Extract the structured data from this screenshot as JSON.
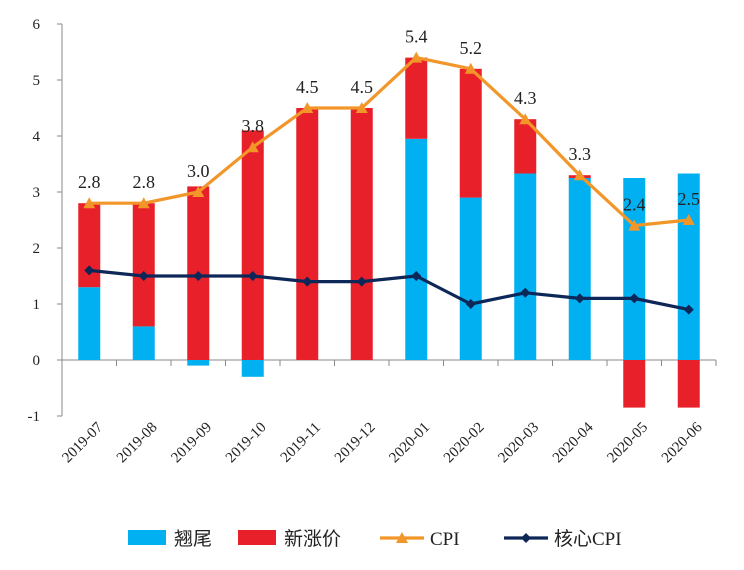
{
  "chart_data": {
    "type": "bar",
    "title": "",
    "xlabel": "",
    "ylabel": "",
    "ylim": [
      -1,
      6
    ],
    "yticks": [
      "-1",
      "0",
      "1",
      "2",
      "3",
      "4",
      "5",
      "6"
    ],
    "categories": [
      "2019-07",
      "2019-08",
      "2019-09",
      "2019-10",
      "2019-11",
      "2019-12",
      "2020-01",
      "2020-02",
      "2020-03",
      "2020-04",
      "2020-05",
      "2020-06"
    ],
    "series": [
      {
        "name": "翘尾",
        "kind": "bar",
        "color": "#00b0f0",
        "values": [
          1.3,
          0.6,
          -0.1,
          -0.3,
          0.0,
          0.0,
          3.95,
          2.9,
          3.33,
          3.25,
          3.25,
          3.33
        ]
      },
      {
        "name": "新涨价",
        "kind": "bar",
        "color": "#e8202a",
        "values": [
          1.5,
          2.2,
          3.1,
          4.1,
          4.5,
          4.5,
          1.45,
          2.3,
          0.97,
          0.05,
          -0.85,
          -0.85
        ]
      },
      {
        "name": "CPI",
        "kind": "line",
        "color": "#f39629",
        "marker": "triangle",
        "values": [
          2.8,
          2.8,
          3.0,
          3.8,
          4.5,
          4.5,
          5.4,
          5.2,
          4.3,
          3.3,
          2.4,
          2.5
        ],
        "labels": [
          "2.8",
          "2.8",
          "3.0",
          "3.8",
          "4.5",
          "4.5",
          "5.4",
          "5.2",
          "4.3",
          "3.3",
          "2.4",
          "2.5"
        ]
      },
      {
        "name": "核心CPI",
        "kind": "line",
        "color": "#0d2758",
        "marker": "diamond",
        "values": [
          1.6,
          1.5,
          1.5,
          1.5,
          1.4,
          1.4,
          1.5,
          1.0,
          1.2,
          1.1,
          1.1,
          0.9
        ]
      }
    ],
    "legend_position": "bottom"
  }
}
